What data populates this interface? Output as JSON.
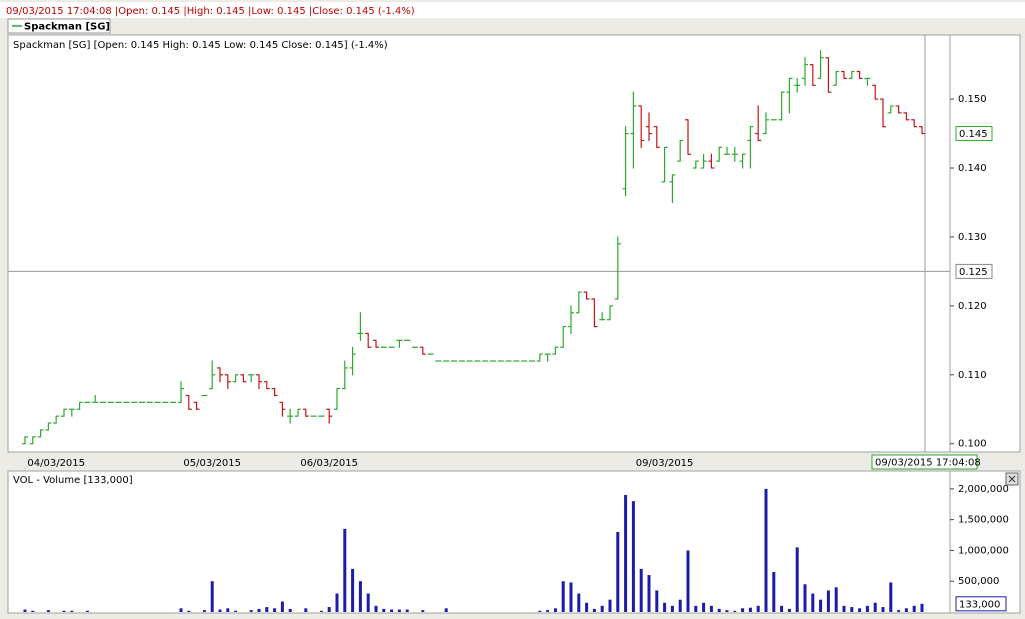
{
  "header": {
    "status": "09/03/2015 17:04:08 |Open: 0.145 |High: 0.145 |Low: 0.145 |Close: 0.145 (-1.4%)",
    "legend": "Spackman [SG]"
  },
  "chart_data": [
    {
      "type": "ohlc",
      "title": "Spackman [SG] [Open: 0.145  High: 0.145  Low: 0.145  Close: 0.145] (-1.4%)",
      "up_color": "#2ea82e",
      "down_color": "#c81414",
      "categories": [
        null,
        null,
        null,
        null,
        "04/03/2015",
        null,
        null,
        null,
        null,
        null,
        null,
        null,
        null,
        null,
        null,
        null,
        null,
        null,
        null,
        null,
        null,
        null,
        null,
        null,
        "05/03/2015",
        null,
        null,
        null,
        null,
        null,
        null,
        null,
        null,
        null,
        null,
        null,
        null,
        null,
        null,
        "06/03/2015",
        null,
        null,
        null,
        null,
        null,
        null,
        null,
        null,
        null,
        null,
        null,
        null,
        null,
        null,
        null,
        null,
        null,
        null,
        null,
        null,
        null,
        null,
        null,
        null,
        null,
        null,
        null,
        null,
        null,
        null,
        null,
        null,
        null,
        null,
        null,
        null,
        null,
        null,
        null,
        null,
        null,
        null,
        "09/03/2015",
        null,
        null,
        null,
        null,
        null,
        null,
        null,
        null,
        null,
        null,
        null,
        null,
        null,
        null,
        null,
        null,
        null,
        null,
        null,
        null,
        null,
        null,
        null,
        null,
        null,
        null,
        null,
        null,
        null,
        null,
        null,
        null,
        null
      ],
      "ohlc": [
        [
          0.1,
          0.101,
          0.1,
          0.101
        ],
        [
          0.1,
          0.101,
          0.1,
          0.101
        ],
        [
          0.101,
          0.102,
          0.101,
          0.102
        ],
        [
          0.102,
          0.103,
          0.102,
          0.103
        ],
        [
          0.103,
          0.104,
          0.103,
          0.104
        ],
        [
          0.104,
          0.105,
          0.104,
          0.105
        ],
        [
          0.105,
          0.105,
          0.104,
          0.105
        ],
        [
          0.105,
          0.106,
          0.105,
          0.106
        ],
        [
          0.106,
          0.106,
          0.106,
          0.106
        ],
        [
          0.106,
          0.107,
          0.106,
          0.106
        ],
        [
          0.106,
          0.106,
          0.106,
          0.106
        ],
        [
          0.106,
          0.106,
          0.106,
          0.106
        ],
        [
          0.106,
          0.106,
          0.106,
          0.106
        ],
        [
          0.106,
          0.106,
          0.106,
          0.106
        ],
        [
          0.106,
          0.106,
          0.106,
          0.106
        ],
        [
          0.106,
          0.106,
          0.106,
          0.106
        ],
        [
          0.106,
          0.106,
          0.106,
          0.106
        ],
        [
          0.106,
          0.106,
          0.106,
          0.106
        ],
        [
          0.106,
          0.106,
          0.106,
          0.106
        ],
        [
          0.106,
          0.106,
          0.106,
          0.106
        ],
        [
          0.106,
          0.109,
          0.106,
          0.108
        ],
        [
          0.107,
          0.107,
          0.105,
          0.105
        ],
        [
          0.106,
          0.106,
          0.105,
          0.105
        ],
        [
          0.107,
          0.107,
          0.107,
          0.107
        ],
        [
          0.108,
          0.112,
          0.108,
          0.11
        ],
        [
          0.111,
          0.111,
          0.109,
          0.11
        ],
        [
          0.11,
          0.11,
          0.108,
          0.109
        ],
        [
          0.109,
          0.11,
          0.109,
          0.11
        ],
        [
          0.11,
          0.11,
          0.109,
          0.109
        ],
        [
          0.11,
          0.11,
          0.109,
          0.11
        ],
        [
          0.11,
          0.11,
          0.108,
          0.109
        ],
        [
          0.109,
          0.109,
          0.108,
          0.108
        ],
        [
          0.108,
          0.108,
          0.107,
          0.107
        ],
        [
          0.106,
          0.106,
          0.104,
          0.105
        ],
        [
          0.104,
          0.105,
          0.103,
          0.104
        ],
        [
          0.104,
          0.105,
          0.104,
          0.105
        ],
        [
          0.105,
          0.105,
          0.104,
          0.104
        ],
        [
          0.104,
          0.104,
          0.104,
          0.104
        ],
        [
          0.104,
          0.104,
          0.104,
          0.104
        ],
        [
          0.105,
          0.105,
          0.103,
          0.104
        ],
        [
          0.105,
          0.108,
          0.105,
          0.108
        ],
        [
          0.108,
          0.112,
          0.108,
          0.111
        ],
        [
          0.111,
          0.114,
          0.11,
          0.113
        ],
        [
          0.116,
          0.119,
          0.115,
          0.116
        ],
        [
          0.116,
          0.116,
          0.114,
          0.114
        ],
        [
          0.115,
          0.115,
          0.114,
          0.114
        ],
        [
          0.114,
          0.114,
          0.114,
          0.114
        ],
        [
          0.114,
          0.114,
          0.114,
          0.114
        ],
        [
          0.115,
          0.115,
          0.114,
          0.115
        ],
        [
          0.115,
          0.115,
          0.115,
          0.115
        ],
        [
          0.114,
          0.114,
          0.114,
          0.114
        ],
        [
          0.114,
          0.114,
          0.113,
          0.113
        ],
        [
          0.113,
          0.113,
          0.113,
          0.113
        ],
        [
          0.112,
          0.112,
          0.112,
          0.112
        ],
        [
          0.112,
          0.112,
          0.112,
          0.112
        ],
        [
          0.112,
          0.112,
          0.112,
          0.112
        ],
        [
          0.112,
          0.112,
          0.112,
          0.112
        ],
        [
          0.112,
          0.112,
          0.112,
          0.112
        ],
        [
          0.112,
          0.112,
          0.112,
          0.112
        ],
        [
          0.112,
          0.112,
          0.112,
          0.112
        ],
        [
          0.112,
          0.112,
          0.112,
          0.112
        ],
        [
          0.112,
          0.112,
          0.112,
          0.112
        ],
        [
          0.112,
          0.112,
          0.112,
          0.112
        ],
        [
          0.112,
          0.112,
          0.112,
          0.112
        ],
        [
          0.112,
          0.112,
          0.112,
          0.112
        ],
        [
          0.112,
          0.112,
          0.112,
          0.112
        ],
        [
          0.112,
          0.113,
          0.112,
          0.113
        ],
        [
          0.113,
          0.113,
          0.112,
          0.113
        ],
        [
          0.113,
          0.114,
          0.113,
          0.114
        ],
        [
          0.114,
          0.117,
          0.114,
          0.117
        ],
        [
          0.117,
          0.12,
          0.116,
          0.119
        ],
        [
          0.119,
          0.122,
          0.119,
          0.122
        ],
        [
          0.122,
          0.122,
          0.121,
          0.121
        ],
        [
          0.121,
          0.121,
          0.117,
          0.117
        ],
        [
          0.118,
          0.119,
          0.118,
          0.118
        ],
        [
          0.118,
          0.12,
          0.118,
          0.12
        ],
        [
          0.121,
          0.13,
          0.121,
          0.129
        ],
        [
          0.137,
          0.146,
          0.136,
          0.145
        ],
        [
          0.145,
          0.151,
          0.14,
          0.149
        ],
        [
          0.149,
          0.149,
          0.143,
          0.144
        ],
        [
          0.146,
          0.148,
          0.144,
          0.145
        ],
        [
          0.146,
          0.146,
          0.143,
          0.143
        ],
        [
          0.138,
          0.143,
          0.138,
          0.143
        ],
        [
          0.138,
          0.139,
          0.135,
          0.139
        ],
        [
          0.141,
          0.144,
          0.141,
          0.144
        ],
        [
          0.147,
          0.147,
          0.142,
          0.142
        ],
        [
          0.14,
          0.141,
          0.14,
          0.141
        ],
        [
          0.14,
          0.142,
          0.14,
          0.141
        ],
        [
          0.141,
          0.142,
          0.14,
          0.14
        ],
        [
          0.141,
          0.143,
          0.141,
          0.143
        ],
        [
          0.142,
          0.143,
          0.142,
          0.142
        ],
        [
          0.142,
          0.143,
          0.141,
          0.142
        ],
        [
          0.141,
          0.142,
          0.14,
          0.142
        ],
        [
          0.144,
          0.146,
          0.14,
          0.146
        ],
        [
          0.145,
          0.149,
          0.144,
          0.144
        ],
        [
          0.145,
          0.148,
          0.145,
          0.147
        ],
        [
          0.147,
          0.147,
          0.147,
          0.147
        ],
        [
          0.147,
          0.151,
          0.147,
          0.151
        ],
        [
          0.151,
          0.153,
          0.148,
          0.153
        ],
        [
          0.152,
          0.153,
          0.151,
          0.152
        ],
        [
          0.153,
          0.156,
          0.152,
          0.155
        ],
        [
          0.155,
          0.155,
          0.152,
          0.152
        ],
        [
          0.153,
          0.157,
          0.153,
          0.156
        ],
        [
          0.156,
          0.156,
          0.151,
          0.151
        ],
        [
          0.152,
          0.154,
          0.152,
          0.154
        ],
        [
          0.154,
          0.154,
          0.153,
          0.153
        ],
        [
          0.153,
          0.154,
          0.153,
          0.154
        ],
        [
          0.154,
          0.154,
          0.153,
          0.153
        ],
        [
          0.153,
          0.153,
          0.152,
          0.153
        ],
        [
          0.152,
          0.152,
          0.15,
          0.15
        ],
        [
          0.15,
          0.15,
          0.146,
          0.146
        ],
        [
          0.148,
          0.149,
          0.148,
          0.149
        ],
        [
          0.149,
          0.149,
          0.148,
          0.148
        ],
        [
          0.148,
          0.148,
          0.147,
          0.147
        ],
        [
          0.147,
          0.147,
          0.146,
          0.146
        ],
        [
          0.146,
          0.146,
          0.145,
          0.145
        ]
      ],
      "ylim": [
        0.0988,
        0.1593
      ],
      "yticks": [
        {
          "value": 0.1,
          "label": "0.100"
        },
        {
          "value": 0.11,
          "label": "0.110"
        },
        {
          "value": 0.12,
          "label": "0.120"
        },
        {
          "value": 0.13,
          "label": "0.130"
        },
        {
          "value": 0.14,
          "label": "0.140"
        },
        {
          "value": 0.15,
          "label": "0.150"
        }
      ],
      "last_price": {
        "value": 0.145,
        "label": "0.145"
      },
      "crosshair": {
        "value": 0.125,
        "label": "0.125"
      },
      "crosshair_time": "09/03/2015 17:04:08"
    },
    {
      "type": "bar",
      "title": "VOL - Volume [133,000]",
      "color": "#1c1ca8",
      "values": [
        40000,
        20000,
        0,
        30000,
        0,
        20000,
        20000,
        0,
        20000,
        0,
        0,
        0,
        0,
        0,
        0,
        0,
        0,
        0,
        0,
        0,
        60000,
        20000,
        0,
        30000,
        500000,
        40000,
        60000,
        20000,
        0,
        30000,
        50000,
        80000,
        60000,
        170000,
        50000,
        0,
        60000,
        0,
        20000,
        80000,
        300000,
        1350000,
        700000,
        500000,
        300000,
        100000,
        50000,
        40000,
        40000,
        40000,
        0,
        30000,
        0,
        0,
        60000,
        0,
        0,
        0,
        0,
        0,
        0,
        0,
        0,
        0,
        0,
        0,
        20000,
        30000,
        60000,
        500000,
        480000,
        300000,
        150000,
        50000,
        100000,
        200000,
        1300000,
        1900000,
        1800000,
        700000,
        600000,
        350000,
        150000,
        100000,
        200000,
        1000000,
        100000,
        150000,
        100000,
        50000,
        30000,
        20000,
        60000,
        70000,
        100000,
        2000000,
        650000,
        100000,
        50000,
        1050000,
        450000,
        300000,
        200000,
        350000,
        400000,
        100000,
        80000,
        60000,
        100000,
        150000,
        80000,
        480000,
        30000,
        60000,
        100000,
        133000
      ],
      "ylim": [
        0,
        2290000
      ],
      "yticks": [
        {
          "value": 500000,
          "label": "500,000"
        },
        {
          "value": 1000000,
          "label": "1,000,000"
        },
        {
          "value": 1500000,
          "label": "1,500,000"
        },
        {
          "value": 2000000,
          "label": "2,000,000"
        }
      ],
      "last_volume": {
        "value": 133000,
        "label": "133,000"
      }
    }
  ]
}
